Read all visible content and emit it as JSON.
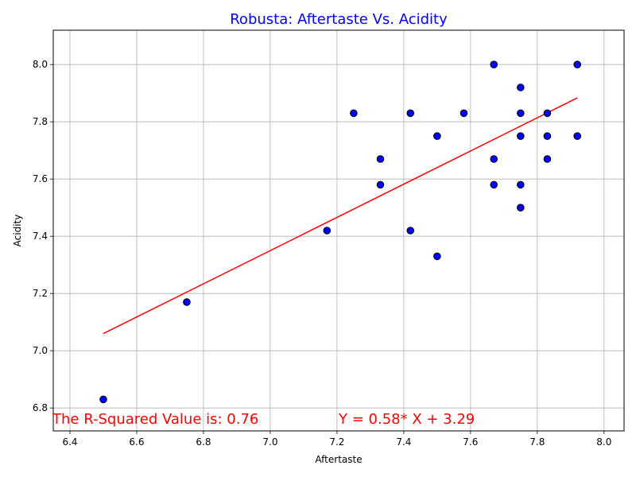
{
  "chart_data": {
    "type": "scatter",
    "title": "Robusta: Aftertaste Vs. Acidity",
    "xlabel": "Aftertaste",
    "ylabel": "Acidity",
    "xlim": [
      6.35,
      8.06
    ],
    "ylim": [
      6.72,
      8.12
    ],
    "xticks": [
      6.4,
      6.6,
      6.8,
      7.0,
      7.2,
      7.4,
      7.6,
      7.8,
      8.0
    ],
    "xtick_labels": [
      "6.4",
      "6.6",
      "6.8",
      "7.0",
      "7.2",
      "7.4",
      "7.6",
      "7.8",
      "8.0"
    ],
    "yticks": [
      6.8,
      7.0,
      7.2,
      7.4,
      7.6,
      7.8,
      8.0
    ],
    "ytick_labels": [
      "6.8",
      "7.0",
      "7.2",
      "7.4",
      "7.6",
      "7.8",
      "8.0"
    ],
    "grid": true,
    "points": [
      {
        "x": 6.5,
        "y": 6.83
      },
      {
        "x": 6.75,
        "y": 7.17
      },
      {
        "x": 7.17,
        "y": 7.42
      },
      {
        "x": 7.25,
        "y": 7.83
      },
      {
        "x": 7.33,
        "y": 7.67
      },
      {
        "x": 7.33,
        "y": 7.58
      },
      {
        "x": 7.42,
        "y": 7.83
      },
      {
        "x": 7.42,
        "y": 7.42
      },
      {
        "x": 7.5,
        "y": 7.75
      },
      {
        "x": 7.5,
        "y": 7.33
      },
      {
        "x": 7.58,
        "y": 7.83
      },
      {
        "x": 7.67,
        "y": 8.0
      },
      {
        "x": 7.67,
        "y": 7.67
      },
      {
        "x": 7.67,
        "y": 7.58
      },
      {
        "x": 7.75,
        "y": 7.92
      },
      {
        "x": 7.75,
        "y": 7.83
      },
      {
        "x": 7.75,
        "y": 7.75
      },
      {
        "x": 7.75,
        "y": 7.58
      },
      {
        "x": 7.75,
        "y": 7.5
      },
      {
        "x": 7.83,
        "y": 7.83
      },
      {
        "x": 7.83,
        "y": 7.75
      },
      {
        "x": 7.83,
        "y": 7.67
      },
      {
        "x": 7.92,
        "y": 8.0
      },
      {
        "x": 7.92,
        "y": 7.75
      }
    ],
    "regression": {
      "slope": 0.58,
      "intercept": 3.29,
      "x_range": [
        6.5,
        7.92
      ]
    },
    "annotations": {
      "r_squared": "The R-Squared Value is: 0.76",
      "equation": "Y = 0.58* X + 3.29"
    },
    "colors": {
      "marker_fill": "#0000ff",
      "marker_edge": "#000000",
      "line": "#ff0000",
      "title": "#0000ff",
      "annotation": "#ff0000",
      "grid": "#b0b0b0"
    }
  }
}
